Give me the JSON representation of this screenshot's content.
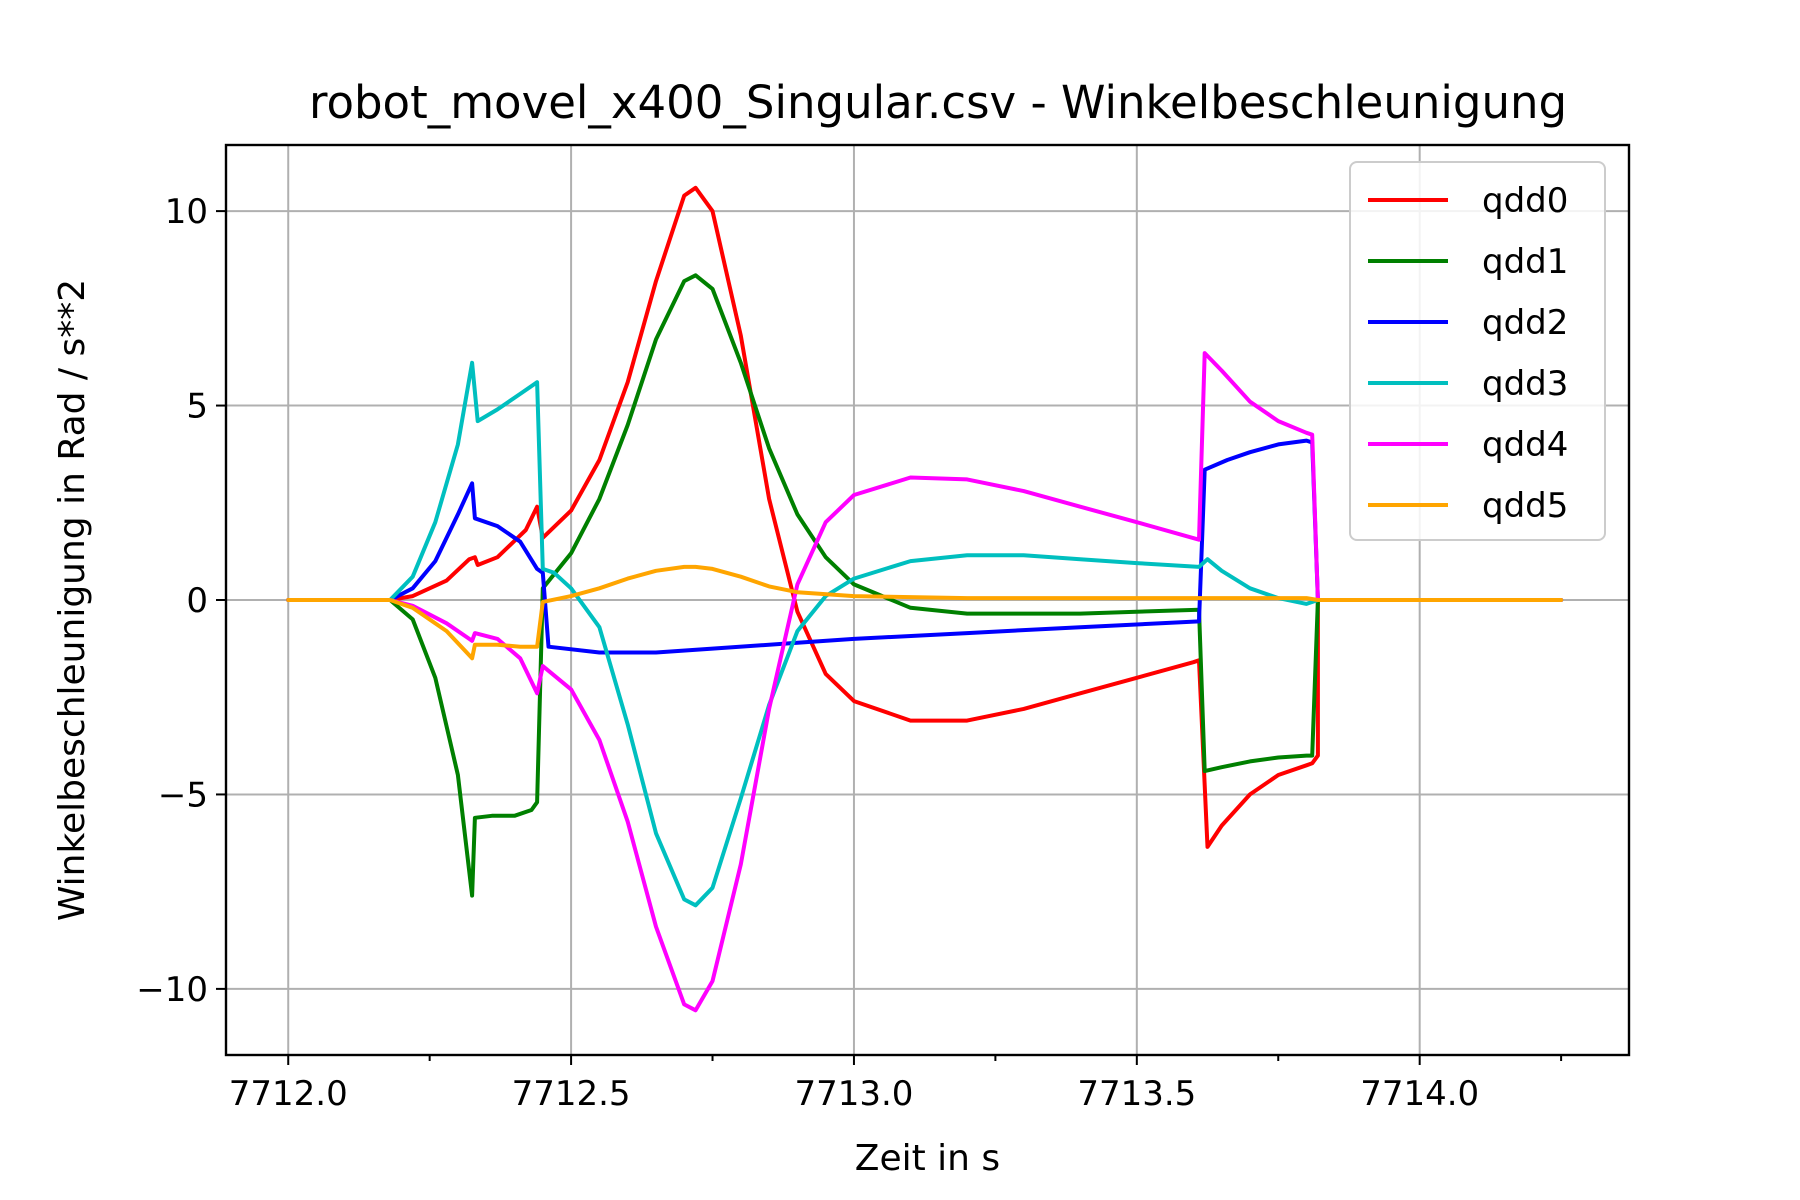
{
  "chart_data": {
    "type": "line",
    "title": "robot_movel_x400_Singular.csv - Winkelbeschleunigung",
    "xlabel": "Zeit in s",
    "ylabel": "Winkelbeschleunigung in Rad / s**2",
    "xlim": [
      7711.89,
      7714.37
    ],
    "ylim": [
      -11.7,
      11.7
    ],
    "xticks": [
      7712.0,
      7712.5,
      7713.0,
      7713.5,
      7714.0
    ],
    "xtick_labels": [
      "7712.0",
      "7712.5",
      "7713.0",
      "7713.5",
      "7714.0"
    ],
    "xminor_ticks": [
      7712.25,
      7712.75,
      7713.25,
      7713.75,
      7714.25
    ],
    "yticks": [
      10,
      5,
      0,
      -5,
      -10
    ],
    "ytick_labels": [
      "10",
      "5",
      "0",
      "−5",
      "−10"
    ],
    "grid": true,
    "legend_position": "top-right",
    "series": [
      {
        "name": "qdd0",
        "color": "#ff0000",
        "points": [
          [
            7712.0,
            0
          ],
          [
            7712.18,
            0
          ],
          [
            7712.22,
            0.1
          ],
          [
            7712.28,
            0.5
          ],
          [
            7712.32,
            1.05
          ],
          [
            7712.33,
            1.1
          ],
          [
            7712.335,
            0.9
          ],
          [
            7712.37,
            1.1
          ],
          [
            7712.42,
            1.8
          ],
          [
            7712.44,
            2.4
          ],
          [
            7712.45,
            1.6
          ],
          [
            7712.5,
            2.3
          ],
          [
            7712.55,
            3.6
          ],
          [
            7712.6,
            5.6
          ],
          [
            7712.65,
            8.2
          ],
          [
            7712.7,
            10.4
          ],
          [
            7712.72,
            10.6
          ],
          [
            7712.75,
            10.0
          ],
          [
            7712.8,
            6.8
          ],
          [
            7712.85,
            2.6
          ],
          [
            7712.9,
            -0.3
          ],
          [
            7712.95,
            -1.9
          ],
          [
            7713.0,
            -2.6
          ],
          [
            7713.1,
            -3.1
          ],
          [
            7713.2,
            -3.1
          ],
          [
            7713.3,
            -2.8
          ],
          [
            7713.4,
            -2.4
          ],
          [
            7713.5,
            -2.0
          ],
          [
            7713.6,
            -1.6
          ],
          [
            7713.61,
            -1.55
          ],
          [
            7713.625,
            -6.35
          ],
          [
            7713.65,
            -5.8
          ],
          [
            7713.7,
            -5.0
          ],
          [
            7713.75,
            -4.5
          ],
          [
            7713.8,
            -4.25
          ],
          [
            7713.81,
            -4.2
          ],
          [
            7713.82,
            -4.0
          ],
          [
            7713.82,
            0
          ],
          [
            7714.25,
            0
          ]
        ]
      },
      {
        "name": "qdd1",
        "color": "#008000",
        "points": [
          [
            7712.0,
            0
          ],
          [
            7712.18,
            0
          ],
          [
            7712.22,
            -0.5
          ],
          [
            7712.26,
            -2.0
          ],
          [
            7712.3,
            -4.5
          ],
          [
            7712.325,
            -7.6
          ],
          [
            7712.33,
            -5.6
          ],
          [
            7712.36,
            -5.55
          ],
          [
            7712.4,
            -5.55
          ],
          [
            7712.43,
            -5.4
          ],
          [
            7712.44,
            -5.2
          ],
          [
            7712.45,
            0.3
          ],
          [
            7712.5,
            1.2
          ],
          [
            7712.55,
            2.6
          ],
          [
            7712.6,
            4.5
          ],
          [
            7712.65,
            6.7
          ],
          [
            7712.7,
            8.2
          ],
          [
            7712.72,
            8.35
          ],
          [
            7712.75,
            8.0
          ],
          [
            7712.8,
            6.1
          ],
          [
            7712.85,
            3.9
          ],
          [
            7712.9,
            2.2
          ],
          [
            7712.95,
            1.1
          ],
          [
            7713.0,
            0.4
          ],
          [
            7713.1,
            -0.2
          ],
          [
            7713.2,
            -0.35
          ],
          [
            7713.4,
            -0.35
          ],
          [
            7713.61,
            -0.25
          ],
          [
            7713.62,
            -4.4
          ],
          [
            7713.65,
            -4.3
          ],
          [
            7713.7,
            -4.15
          ],
          [
            7713.75,
            -4.05
          ],
          [
            7713.8,
            -4.0
          ],
          [
            7713.81,
            -4.0
          ],
          [
            7713.82,
            0
          ],
          [
            7714.25,
            0
          ]
        ]
      },
      {
        "name": "qdd2",
        "color": "#0000ff",
        "points": [
          [
            7712.0,
            0
          ],
          [
            7712.18,
            0
          ],
          [
            7712.22,
            0.3
          ],
          [
            7712.26,
            1.0
          ],
          [
            7712.3,
            2.2
          ],
          [
            7712.325,
            3.0
          ],
          [
            7712.33,
            2.1
          ],
          [
            7712.37,
            1.9
          ],
          [
            7712.41,
            1.5
          ],
          [
            7712.44,
            0.8
          ],
          [
            7712.45,
            0.7
          ],
          [
            7712.46,
            -1.2
          ],
          [
            7712.55,
            -1.35
          ],
          [
            7712.65,
            -1.35
          ],
          [
            7712.75,
            -1.25
          ],
          [
            7712.9,
            -1.1
          ],
          [
            7713.0,
            -1.0
          ],
          [
            7713.2,
            -0.85
          ],
          [
            7713.4,
            -0.7
          ],
          [
            7713.61,
            -0.55
          ],
          [
            7713.62,
            3.35
          ],
          [
            7713.66,
            3.6
          ],
          [
            7713.7,
            3.8
          ],
          [
            7713.75,
            4.0
          ],
          [
            7713.8,
            4.1
          ],
          [
            7713.81,
            4.05
          ],
          [
            7713.82,
            0
          ],
          [
            7714.25,
            0
          ]
        ]
      },
      {
        "name": "qdd3",
        "color": "#00bfbf",
        "points": [
          [
            7712.0,
            0
          ],
          [
            7712.18,
            0
          ],
          [
            7712.22,
            0.6
          ],
          [
            7712.26,
            2.0
          ],
          [
            7712.3,
            4.0
          ],
          [
            7712.325,
            6.1
          ],
          [
            7712.335,
            4.6
          ],
          [
            7712.37,
            4.9
          ],
          [
            7712.41,
            5.3
          ],
          [
            7712.44,
            5.6
          ],
          [
            7712.45,
            0.8
          ],
          [
            7712.47,
            0.7
          ],
          [
            7712.5,
            0.3
          ],
          [
            7712.55,
            -0.7
          ],
          [
            7712.6,
            -3.2
          ],
          [
            7712.65,
            -6.0
          ],
          [
            7712.7,
            -7.7
          ],
          [
            7712.72,
            -7.85
          ],
          [
            7712.75,
            -7.4
          ],
          [
            7712.8,
            -5.1
          ],
          [
            7712.85,
            -2.7
          ],
          [
            7712.9,
            -0.8
          ],
          [
            7712.95,
            0.1
          ],
          [
            7713.0,
            0.55
          ],
          [
            7713.1,
            1.0
          ],
          [
            7713.2,
            1.15
          ],
          [
            7713.3,
            1.15
          ],
          [
            7713.4,
            1.05
          ],
          [
            7713.5,
            0.95
          ],
          [
            7713.61,
            0.85
          ],
          [
            7713.625,
            1.05
          ],
          [
            7713.65,
            0.75
          ],
          [
            7713.7,
            0.3
          ],
          [
            7713.75,
            0.05
          ],
          [
            7713.8,
            -0.1
          ],
          [
            7713.82,
            0
          ],
          [
            7714.25,
            0
          ]
        ]
      },
      {
        "name": "qdd4",
        "color": "#ff00ff",
        "points": [
          [
            7712.0,
            0
          ],
          [
            7712.18,
            0
          ],
          [
            7712.22,
            -0.15
          ],
          [
            7712.28,
            -0.6
          ],
          [
            7712.32,
            -1.0
          ],
          [
            7712.325,
            -1.05
          ],
          [
            7712.33,
            -0.85
          ],
          [
            7712.37,
            -1.0
          ],
          [
            7712.41,
            -1.5
          ],
          [
            7712.44,
            -2.4
          ],
          [
            7712.45,
            -1.7
          ],
          [
            7712.5,
            -2.3
          ],
          [
            7712.55,
            -3.6
          ],
          [
            7712.6,
            -5.7
          ],
          [
            7712.65,
            -8.4
          ],
          [
            7712.7,
            -10.4
          ],
          [
            7712.72,
            -10.55
          ],
          [
            7712.75,
            -9.8
          ],
          [
            7712.8,
            -6.8
          ],
          [
            7712.85,
            -2.8
          ],
          [
            7712.9,
            0.4
          ],
          [
            7712.95,
            2.0
          ],
          [
            7713.0,
            2.7
          ],
          [
            7713.1,
            3.15
          ],
          [
            7713.2,
            3.1
          ],
          [
            7713.3,
            2.8
          ],
          [
            7713.4,
            2.4
          ],
          [
            7713.5,
            2.0
          ],
          [
            7713.61,
            1.55
          ],
          [
            7713.62,
            6.35
          ],
          [
            7713.65,
            5.9
          ],
          [
            7713.7,
            5.1
          ],
          [
            7713.75,
            4.6
          ],
          [
            7713.8,
            4.3
          ],
          [
            7713.81,
            4.25
          ],
          [
            7713.82,
            0
          ],
          [
            7714.25,
            0
          ]
        ]
      },
      {
        "name": "qdd5",
        "color": "#ffa500",
        "points": [
          [
            7712.0,
            0
          ],
          [
            7712.18,
            0
          ],
          [
            7712.22,
            -0.2
          ],
          [
            7712.28,
            -0.8
          ],
          [
            7712.325,
            -1.5
          ],
          [
            7712.33,
            -1.15
          ],
          [
            7712.37,
            -1.15
          ],
          [
            7712.41,
            -1.2
          ],
          [
            7712.44,
            -1.2
          ],
          [
            7712.45,
            -0.05
          ],
          [
            7712.5,
            0.1
          ],
          [
            7712.55,
            0.3
          ],
          [
            7712.6,
            0.55
          ],
          [
            7712.65,
            0.75
          ],
          [
            7712.7,
            0.85
          ],
          [
            7712.72,
            0.85
          ],
          [
            7712.75,
            0.8
          ],
          [
            7712.8,
            0.6
          ],
          [
            7712.85,
            0.35
          ],
          [
            7712.9,
            0.2
          ],
          [
            7713.0,
            0.1
          ],
          [
            7713.2,
            0.05
          ],
          [
            7713.61,
            0.05
          ],
          [
            7713.62,
            0.05
          ],
          [
            7713.8,
            0.05
          ],
          [
            7713.82,
            0
          ],
          [
            7714.25,
            0
          ]
        ]
      }
    ]
  }
}
